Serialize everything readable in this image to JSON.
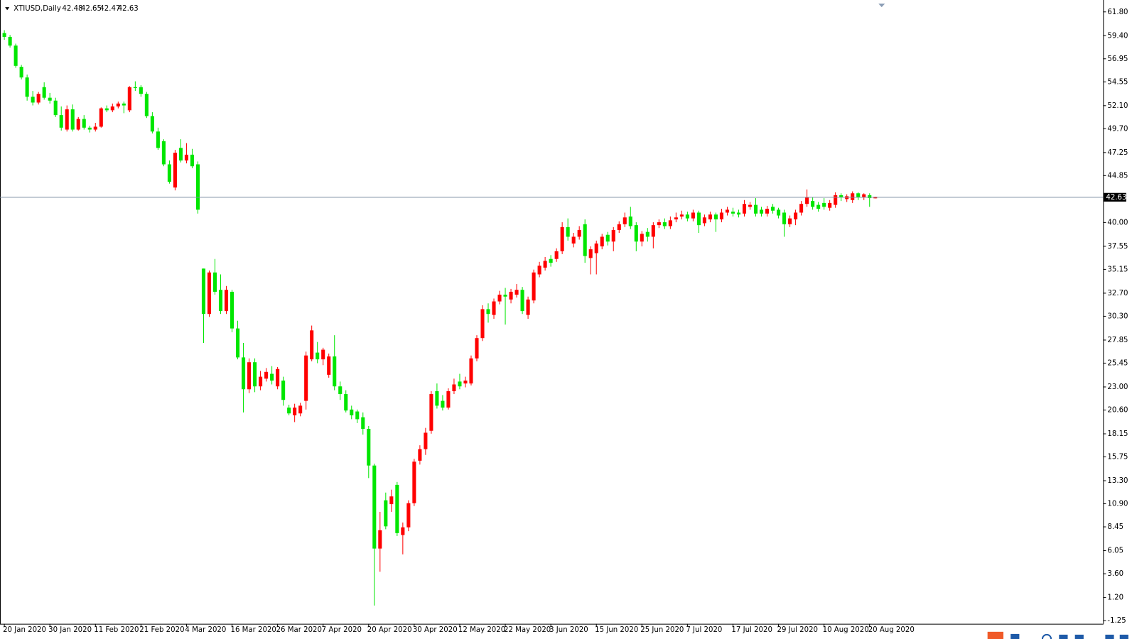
{
  "chart_data": {
    "type": "candlestick",
    "title": "XTIUSD,Daily",
    "up_color": "#ff0000",
    "down_color": "#00e600",
    "price_line_color": "#7d8fa3",
    "grid": false,
    "ylim": [
      -1.6,
      62.8
    ],
    "yticks": [
      {
        "value": 61.8,
        "label": "61.80"
      },
      {
        "value": 59.4,
        "label": "59.40"
      },
      56.95,
      54.55,
      {
        "value": 52.1,
        "label": "52.10"
      },
      {
        "value": 49.7,
        "label": "49.70"
      },
      47.25,
      44.85,
      {
        "value": 40,
        "label": "40.00"
      },
      37.55,
      35.15,
      {
        "value": 32.7,
        "label": "32.70"
      },
      {
        "value": 30.3,
        "label": "30.30"
      },
      27.85,
      25.45,
      {
        "value": 23,
        "label": "23.00"
      },
      {
        "value": 20.6,
        "label": "20.60"
      },
      18.15,
      15.75,
      {
        "value": 13.3,
        "label": "13.30"
      },
      {
        "value": 10.9,
        "label": "10.90"
      },
      8.45,
      6.05,
      {
        "value": 3.6,
        "label": "3.60"
      },
      {
        "value": 1.2,
        "label": "1.20"
      },
      -1.25
    ],
    "categories": [
      "20 Jan 2020",
      null,
      null,
      null,
      null,
      null,
      null,
      null,
      "30 Jan 2020",
      null,
      null,
      null,
      null,
      null,
      null,
      null,
      "11 Feb 2020",
      null,
      null,
      null,
      null,
      null,
      null,
      null,
      "21 Feb 2020",
      null,
      null,
      null,
      null,
      null,
      null,
      null,
      "4 Mar 2020",
      null,
      null,
      null,
      null,
      null,
      null,
      null,
      "16 Mar 2020",
      null,
      null,
      null,
      null,
      null,
      null,
      null,
      "26 Mar 2020",
      null,
      null,
      null,
      null,
      null,
      null,
      null,
      "7 Apr 2020",
      null,
      null,
      null,
      null,
      null,
      null,
      null,
      "20 Apr 2020",
      null,
      null,
      null,
      null,
      null,
      null,
      null,
      "30 Apr 2020",
      null,
      null,
      null,
      null,
      null,
      null,
      null,
      "12 May 2020",
      null,
      null,
      null,
      null,
      null,
      null,
      null,
      "22 May 2020",
      null,
      null,
      null,
      null,
      null,
      null,
      null,
      "3 Jun 2020",
      null,
      null,
      null,
      null,
      null,
      null,
      null,
      "15 Jun 2020",
      null,
      null,
      null,
      null,
      null,
      null,
      null,
      "25 Jun 2020",
      null,
      null,
      null,
      null,
      null,
      null,
      null,
      "7 Jul 2020",
      null,
      null,
      null,
      null,
      null,
      null,
      null,
      "17 Jul 2020",
      null,
      null,
      null,
      null,
      null,
      null,
      null,
      "29 Jul 2020",
      null,
      null,
      null,
      null,
      null,
      null,
      null,
      "10 Aug 2020",
      null,
      null,
      null,
      null,
      null,
      null,
      null,
      "20 Aug 2020",
      null
    ],
    "candles": [
      [
        59.6,
        59.9,
        58.9,
        59.2
      ],
      [
        59.2,
        59.4,
        58.1,
        58.3
      ],
      [
        58.3,
        58.5,
        56.0,
        56.2
      ],
      [
        56.1,
        56.3,
        54.8,
        55.0
      ],
      [
        55.0,
        55.3,
        52.6,
        53.0
      ],
      [
        53.0,
        53.6,
        52.1,
        52.4
      ],
      [
        52.4,
        53.5,
        52.2,
        53.3
      ],
      [
        54.0,
        54.5,
        52.7,
        52.9
      ],
      [
        52.9,
        53.4,
        52.3,
        52.6
      ],
      [
        52.6,
        52.9,
        50.9,
        51.1
      ],
      [
        51.1,
        52.0,
        49.5,
        49.8
      ],
      [
        49.6,
        52.1,
        49.4,
        51.7
      ],
      [
        51.7,
        52.2,
        49.4,
        49.6
      ],
      [
        49.6,
        50.9,
        49.5,
        50.7
      ],
      [
        50.7,
        51.1,
        49.6,
        49.8
      ],
      [
        49.8,
        50.0,
        49.3,
        49.6
      ],
      [
        49.6,
        50.3,
        49.4,
        49.9
      ],
      [
        49.9,
        51.9,
        49.8,
        51.8
      ],
      [
        51.8,
        52.1,
        51.4,
        51.6
      ],
      [
        51.6,
        52.3,
        51.4,
        52.0
      ],
      [
        52.0,
        52.5,
        51.8,
        52.3
      ],
      [
        52.3,
        52.5,
        51.3,
        52.1
      ],
      [
        51.6,
        54.1,
        51.4,
        54.0
      ],
      [
        54.0,
        54.6,
        53.6,
        53.9
      ],
      [
        54.0,
        54.2,
        53.0,
        53.3
      ],
      [
        53.3,
        53.5,
        50.8,
        51.0
      ],
      [
        51.0,
        51.4,
        49.2,
        49.4
      ],
      [
        49.4,
        49.8,
        47.5,
        47.7
      ],
      [
        48.4,
        48.6,
        45.8,
        46.0
      ],
      [
        46.0,
        46.4,
        44.0,
        44.2
      ],
      [
        43.6,
        47.5,
        43.3,
        47.2
      ],
      [
        47.7,
        48.6,
        46.2,
        46.4
      ],
      [
        46.4,
        48.2,
        46.1,
        47.0
      ],
      [
        47.0,
        47.6,
        45.6,
        45.8
      ],
      [
        46.0,
        46.3,
        40.9,
        41.3
      ],
      [
        35.2,
        35.2,
        27.5,
        30.5
      ],
      [
        30.5,
        35.0,
        30.2,
        34.8
      ],
      [
        34.8,
        36.2,
        32.5,
        32.8
      ],
      [
        33.0,
        34.6,
        30.5,
        30.8
      ],
      [
        30.8,
        33.4,
        30.5,
        33.0
      ],
      [
        32.8,
        33.0,
        28.6,
        29.0
      ],
      [
        29.0,
        29.8,
        25.8,
        26.0
      ],
      [
        26.0,
        27.5,
        20.3,
        22.7
      ],
      [
        22.7,
        25.9,
        22.3,
        25.5
      ],
      [
        25.5,
        25.9,
        22.4,
        23.0
      ],
      [
        23.0,
        24.6,
        22.6,
        24.0
      ],
      [
        23.8,
        24.9,
        23.5,
        24.5
      ],
      [
        24.3,
        25.1,
        23.2,
        23.6
      ],
      [
        23.0,
        25.0,
        22.7,
        24.8
      ],
      [
        23.6,
        24.0,
        21.0,
        21.6
      ],
      [
        20.8,
        21.1,
        20.0,
        20.2
      ],
      [
        20.0,
        21.2,
        19.3,
        20.8
      ],
      [
        20.2,
        21.3,
        19.9,
        21.0
      ],
      [
        21.5,
        26.6,
        20.6,
        26.2
      ],
      [
        25.8,
        29.3,
        25.6,
        28.8
      ],
      [
        26.5,
        27.6,
        25.4,
        25.8
      ],
      [
        25.8,
        27.0,
        25.2,
        26.8
      ],
      [
        24.2,
        26.4,
        23.9,
        26.1
      ],
      [
        26.1,
        28.3,
        22.6,
        23.0
      ],
      [
        23.0,
        23.5,
        21.6,
        22.2
      ],
      [
        22.2,
        22.6,
        20.3,
        20.5
      ],
      [
        20.6,
        21.0,
        19.6,
        20.0
      ],
      [
        20.4,
        20.6,
        19.2,
        19.6
      ],
      [
        19.8,
        20.3,
        18.0,
        18.6
      ],
      [
        18.6,
        18.9,
        13.5,
        14.8
      ],
      [
        14.8,
        15.0,
        0.3,
        6.2
      ],
      [
        6.2,
        10.0,
        3.8,
        8.1
      ],
      [
        11.2,
        12.0,
        8.2,
        8.5
      ],
      [
        10.8,
        12.3,
        10.0,
        11.6
      ],
      [
        12.8,
        13.1,
        7.5,
        7.8
      ],
      [
        7.6,
        8.9,
        5.6,
        8.4
      ],
      [
        8.4,
        11.2,
        8.0,
        10.9
      ],
      [
        10.9,
        15.5,
        10.6,
        15.2
      ],
      [
        15.3,
        16.9,
        14.9,
        16.5
      ],
      [
        16.5,
        18.7,
        15.9,
        18.2
      ],
      [
        18.4,
        22.5,
        18.1,
        22.2
      ],
      [
        22.5,
        23.3,
        20.7,
        21.0
      ],
      [
        21.5,
        22.1,
        20.5,
        20.8
      ],
      [
        20.8,
        22.8,
        20.6,
        22.5
      ],
      [
        22.5,
        23.8,
        22.2,
        23.2
      ],
      [
        23.5,
        24.3,
        22.7,
        23.0
      ],
      [
        23.3,
        24.0,
        22.9,
        23.6
      ],
      [
        23.3,
        26.2,
        23.1,
        25.9
      ],
      [
        25.9,
        28.3,
        25.6,
        28.0
      ],
      [
        28.0,
        31.4,
        27.7,
        31.0
      ],
      [
        31.0,
        31.6,
        29.6,
        30.5
      ],
      [
        30.4,
        32.1,
        30.0,
        31.8
      ],
      [
        31.8,
        32.9,
        31.5,
        32.5
      ],
      [
        32.5,
        33.2,
        29.4,
        32.3
      ],
      [
        32.0,
        33.1,
        31.6,
        32.8
      ],
      [
        32.5,
        33.6,
        32.2,
        33.0
      ],
      [
        33.0,
        33.3,
        30.5,
        30.8
      ],
      [
        30.4,
        32.3,
        30.0,
        32.0
      ],
      [
        31.9,
        35.1,
        31.6,
        34.8
      ],
      [
        34.6,
        35.9,
        34.3,
        35.5
      ],
      [
        35.3,
        36.4,
        35.0,
        36.0
      ],
      [
        36.2,
        36.6,
        35.4,
        35.8
      ],
      [
        36.2,
        37.3,
        35.9,
        37.0
      ],
      [
        37.0,
        40.0,
        36.7,
        39.5
      ],
      [
        39.5,
        40.4,
        38.1,
        38.5
      ],
      [
        37.8,
        38.9,
        37.4,
        38.5
      ],
      [
        38.5,
        39.6,
        38.2,
        39.2
      ],
      [
        39.8,
        40.3,
        35.8,
        36.5
      ],
      [
        36.3,
        37.5,
        34.6,
        37.2
      ],
      [
        36.8,
        38.1,
        34.6,
        37.8
      ],
      [
        37.5,
        38.8,
        37.2,
        38.5
      ],
      [
        38.7,
        39.0,
        37.6,
        38.0
      ],
      [
        38.0,
        39.5,
        37.0,
        39.2
      ],
      [
        39.2,
        40.1,
        38.9,
        39.8
      ],
      [
        39.8,
        41.0,
        39.5,
        40.5
      ],
      [
        40.6,
        41.6,
        39.3,
        39.6
      ],
      [
        39.7,
        40.0,
        37.0,
        38.0
      ],
      [
        38.0,
        39.1,
        37.5,
        38.8
      ],
      [
        39.0,
        39.4,
        38.0,
        38.5
      ],
      [
        38.5,
        40.0,
        37.3,
        39.7
      ],
      [
        39.7,
        40.3,
        39.4,
        40.0
      ],
      [
        40.0,
        40.4,
        39.3,
        39.6
      ],
      [
        39.6,
        40.6,
        39.3,
        40.2
      ],
      [
        40.3,
        41.0,
        40.0,
        40.5
      ],
      [
        40.6,
        41.2,
        40.3,
        40.8
      ],
      [
        40.8,
        41.1,
        40.1,
        40.4
      ],
      [
        40.4,
        41.3,
        40.1,
        41.0
      ],
      [
        41.0,
        41.2,
        38.9,
        39.7
      ],
      [
        39.9,
        40.8,
        39.6,
        40.5
      ],
      [
        40.3,
        41.1,
        40.0,
        40.8
      ],
      [
        40.8,
        41.0,
        39.0,
        40.3
      ],
      [
        40.3,
        41.4,
        40.0,
        41.0
      ],
      [
        41.0,
        41.6,
        40.7,
        41.3
      ],
      [
        41.1,
        41.5,
        40.6,
        40.9
      ],
      [
        41.0,
        41.3,
        40.5,
        40.8
      ],
      [
        40.9,
        42.3,
        40.6,
        41.9
      ],
      [
        41.6,
        42.1,
        41.3,
        41.8
      ],
      [
        41.8,
        42.5,
        40.6,
        40.9
      ],
      [
        41.3,
        41.6,
        40.6,
        40.9
      ],
      [
        40.9,
        41.7,
        40.6,
        41.4
      ],
      [
        41.6,
        41.9,
        40.9,
        41.2
      ],
      [
        41.3,
        41.5,
        40.4,
        40.7
      ],
      [
        41.0,
        41.3,
        38.5,
        39.8
      ],
      [
        39.8,
        40.7,
        39.5,
        40.4
      ],
      [
        40.3,
        41.3,
        39.7,
        41.0
      ],
      [
        41.0,
        42.2,
        40.7,
        41.9
      ],
      [
        41.9,
        43.4,
        41.6,
        42.6
      ],
      [
        42.2,
        42.6,
        41.3,
        41.6
      ],
      [
        41.8,
        42.1,
        41.1,
        41.4
      ],
      [
        42.0,
        42.5,
        41.3,
        41.6
      ],
      [
        41.5,
        42.3,
        41.2,
        42.0
      ],
      [
        41.8,
        43.1,
        41.5,
        42.8
      ],
      [
        42.8,
        43.0,
        42.2,
        42.6
      ],
      [
        42.4,
        42.9,
        42.1,
        42.7
      ],
      [
        42.3,
        43.2,
        42.0,
        43.0
      ],
      [
        43.0,
        43.1,
        42.3,
        42.6
      ],
      [
        42.6,
        43.0,
        42.3,
        42.9
      ],
      [
        42.8,
        43.0,
        41.6,
        42.5
      ],
      [
        42.48,
        42.65,
        42.47,
        42.63
      ]
    ]
  }
}
